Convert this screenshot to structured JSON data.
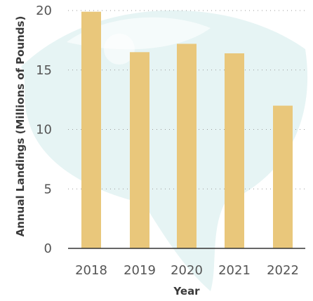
{
  "chart_data": {
    "type": "bar",
    "categories": [
      "2018",
      "2019",
      "2020",
      "2021",
      "2022"
    ],
    "values": [
      19.9,
      16.5,
      17.2,
      16.4,
      12.0
    ],
    "xlabel": "Year",
    "ylabel": "Annual Landings (Millions of Pounds)",
    "ylim": [
      0,
      20
    ],
    "yticks": [
      "0",
      "5",
      "10",
      "15",
      "20"
    ],
    "grid": true,
    "bar_color": "#e9c77b",
    "watermark_color": "#e6f4f4"
  }
}
